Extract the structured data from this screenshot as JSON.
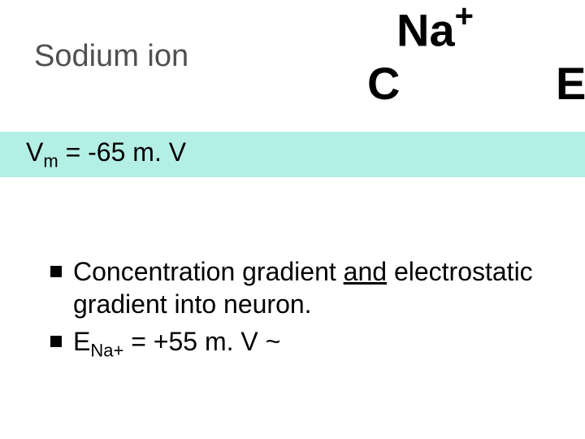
{
  "colors": {
    "background": "#ffffff",
    "title_text": "#505050",
    "body_text": "#000000",
    "highlight_box": "#b4efe5",
    "bullet_marker": "#000000"
  },
  "title": "Sodium ion",
  "ion": {
    "element": "Na",
    "charge": "+"
  },
  "labels": {
    "c": "C",
    "e": "E"
  },
  "vm": {
    "symbol": "V",
    "subscript": "m",
    "equals": " = -65 m. V"
  },
  "bullets": [
    {
      "pre": "Concentration gradient ",
      "underlined": "and",
      "post": " electrostatic gradient into neuron."
    },
    {
      "e_sym": "E",
      "e_sub": "Na+",
      "rest": " = +55 m. V ~"
    }
  ],
  "typography": {
    "title_fontsize": 38,
    "ion_fontsize": 56,
    "ce_fontsize": 56,
    "vm_fontsize": 32,
    "bullet_fontsize": 32
  }
}
